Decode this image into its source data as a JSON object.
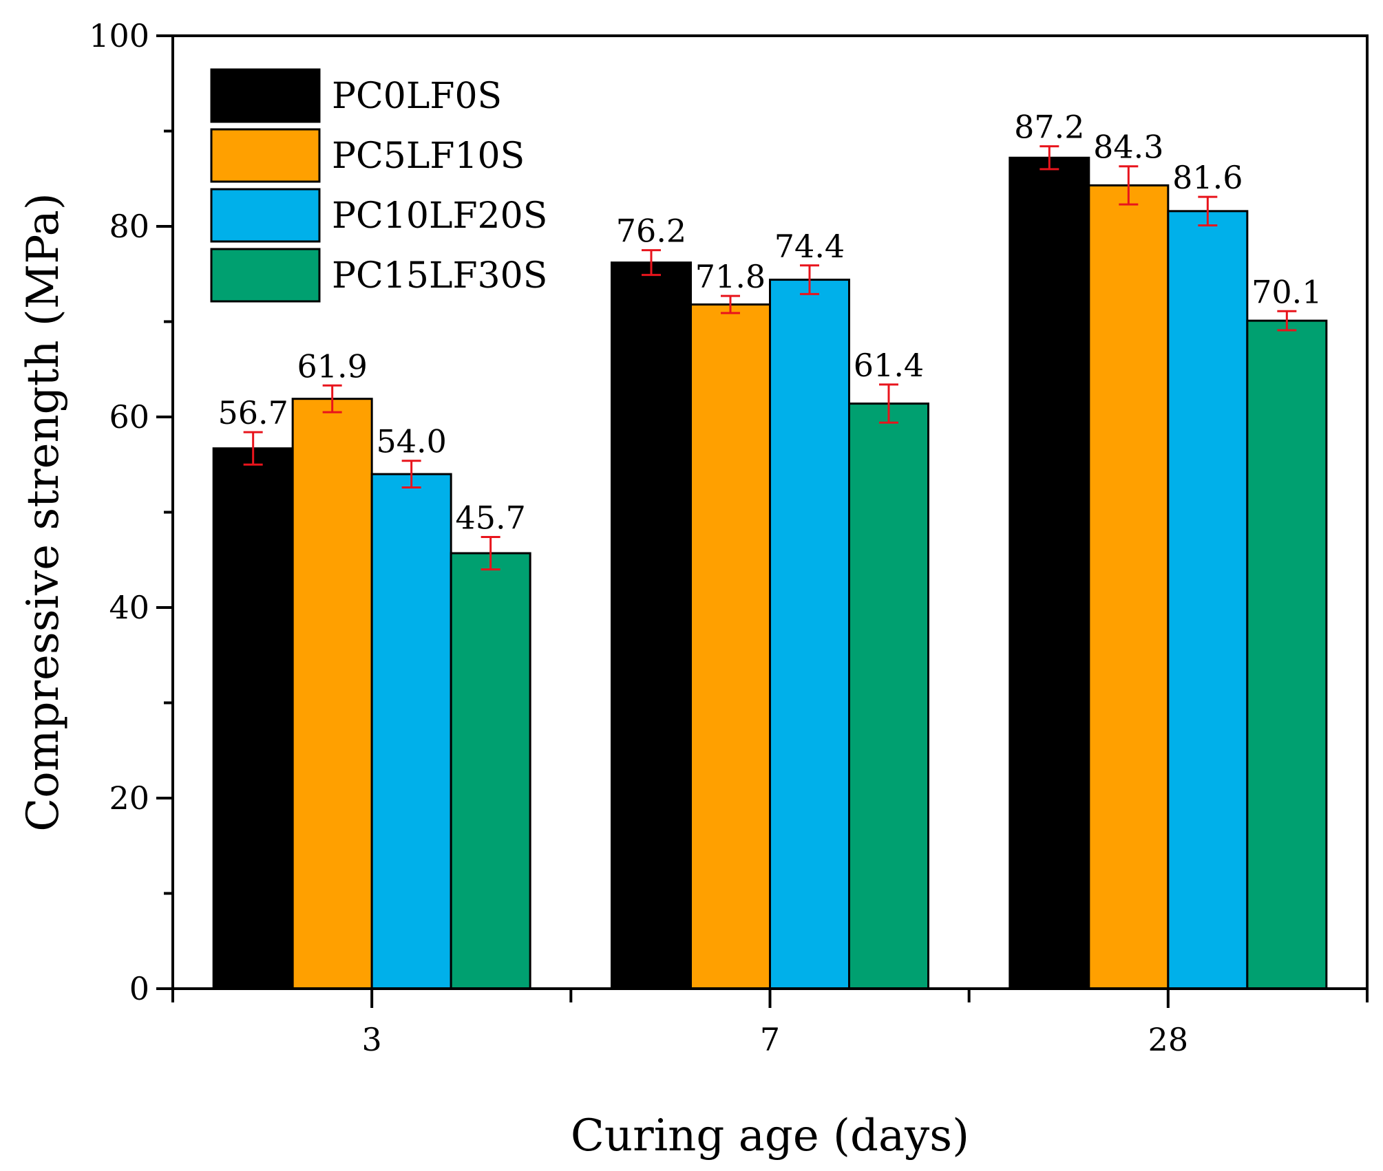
{
  "chart_data": {
    "type": "bar",
    "title": "",
    "xlabel": "Curing age (days)",
    "ylabel": "Compressive strength (MPa)",
    "categories": [
      "3",
      "7",
      "28"
    ],
    "ylim": [
      0,
      100
    ],
    "yticks": [
      "0",
      "20",
      "40",
      "60",
      "80",
      "100"
    ],
    "grid": false,
    "legend_position": "top-left",
    "series": [
      {
        "name": "PC0LF0S",
        "color": "#000000",
        "values": [
          56.7,
          76.2,
          87.2
        ],
        "value_labels": [
          "56.7",
          "76.2",
          "87.2"
        ],
        "errors": [
          1.7,
          1.3,
          1.2
        ]
      },
      {
        "name": "PC5LF10S",
        "color": "#FFA000",
        "values": [
          61.9,
          71.8,
          84.3
        ],
        "value_labels": [
          "61.9",
          "71.8",
          "84.3"
        ],
        "errors": [
          1.4,
          0.9,
          2.0
        ]
      },
      {
        "name": "PC10LF20S",
        "color": "#00B0EA",
        "values": [
          54.0,
          74.4,
          81.6
        ],
        "value_labels": [
          "54.0",
          "74.4",
          "81.6"
        ],
        "errors": [
          1.4,
          1.5,
          1.5
        ]
      },
      {
        "name": "PC15LF30S",
        "color": "#00A070",
        "values": [
          45.7,
          61.4,
          70.1
        ],
        "value_labels": [
          "45.7",
          "61.4",
          "70.1"
        ],
        "errors": [
          1.7,
          2.0,
          1.0
        ]
      }
    ],
    "error_bar_color": "#E8141C"
  }
}
